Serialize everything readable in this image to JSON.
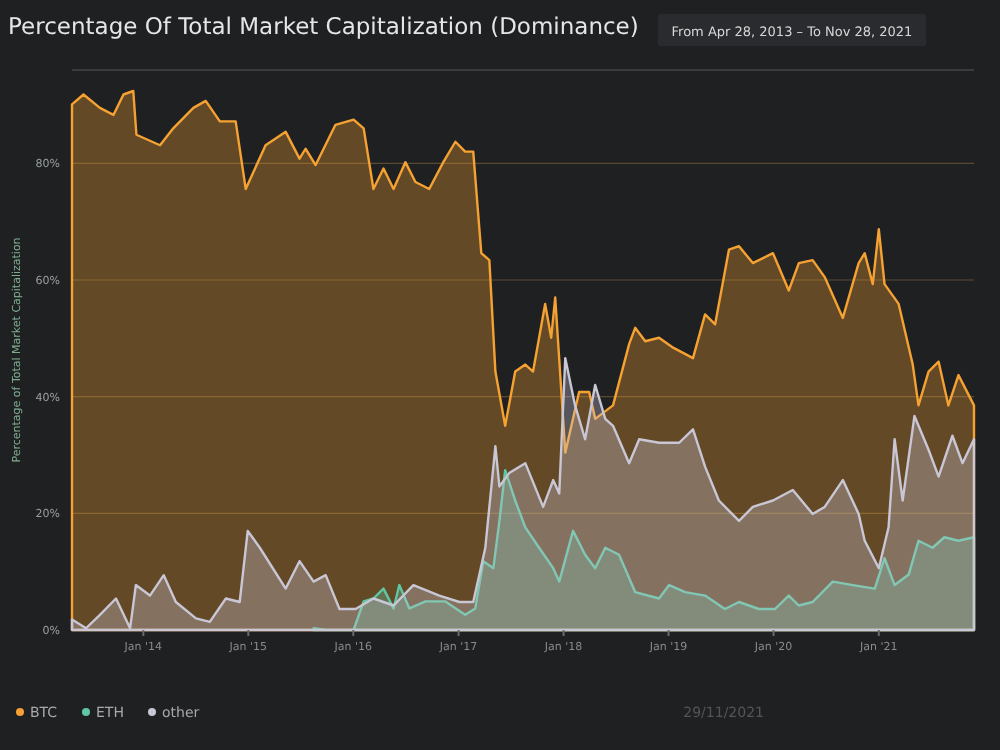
{
  "chart_data": {
    "type": "area",
    "title": "Percentage Of Total Market Capitalization (Dominance)",
    "subtitle": "From Apr 28, 2013 – To Nov 28, 2021",
    "ylabel": "Percentage of Total Market Capitalization",
    "annotations": [
      "29/11/2021"
    ],
    "xlim": [
      "2013-04-28",
      "2021-11-28"
    ],
    "xticks": [
      {
        "value": "2014-01-01",
        "label": "Jan '14"
      },
      {
        "value": "2015-01-01",
        "label": "Jan '15"
      },
      {
        "value": "2016-01-01",
        "label": "Jan '16"
      },
      {
        "value": "2017-01-01",
        "label": "Jan '17"
      },
      {
        "value": "2018-01-01",
        "label": "Jan '18"
      },
      {
        "value": "2019-01-01",
        "label": "Jan '19"
      },
      {
        "value": "2020-01-01",
        "label": "Jan '20"
      },
      {
        "value": "2021-01-01",
        "label": "Jan '21"
      }
    ],
    "ylim": [
      0,
      96
    ],
    "yticks": [
      {
        "value": 0,
        "label": "0%"
      },
      {
        "value": 20,
        "label": "20%"
      },
      {
        "value": 40,
        "label": "40%"
      },
      {
        "value": 60,
        "label": "60%"
      },
      {
        "value": 80,
        "label": "80%"
      }
    ],
    "grid": "y",
    "legend": "bottom left",
    "series": [
      {
        "name": "BTC",
        "color": "#f5a233",
        "x": [
          "2013-04-28",
          "2013-06-07",
          "2013-08-03",
          "2013-09-19",
          "2013-10-24",
          "2013-11-27",
          "2013-12-08",
          "2014-02-28",
          "2014-04-15",
          "2014-06-24",
          "2014-08-06",
          "2014-09-24",
          "2014-11-18",
          "2014-12-23",
          "2015-03-02",
          "2015-05-11",
          "2015-06-28",
          "2015-07-19",
          "2015-08-23",
          "2015-10-31",
          "2016-01-02",
          "2016-02-06",
          "2016-03-11",
          "2016-04-15",
          "2016-05-20",
          "2016-06-30",
          "2016-08-04",
          "2016-09-21",
          "2016-11-09",
          "2016-12-21",
          "2017-01-24",
          "2017-02-21",
          "2017-03-21",
          "2017-04-18",
          "2017-05-09",
          "2017-06-12",
          "2017-07-17",
          "2017-08-21",
          "2017-09-17",
          "2017-10-29",
          "2017-11-19",
          "2017-12-03",
          "2018-01-07",
          "2018-02-24",
          "2018-03-31",
          "2018-04-21",
          "2018-06-22",
          "2018-08-17",
          "2018-09-07",
          "2018-10-12",
          "2018-11-29",
          "2019-01-17",
          "2019-03-27",
          "2019-05-08",
          "2019-06-12",
          "2019-07-30",
          "2019-09-03",
          "2019-10-21",
          "2019-12-30",
          "2020-02-23",
          "2020-03-29",
          "2020-05-16",
          "2020-06-27",
          "2020-08-29",
          "2020-10-23",
          "2020-11-13",
          "2020-12-11",
          "2021-01-01",
          "2021-01-21",
          "2021-03-11",
          "2021-04-29",
          "2021-05-19",
          "2021-06-23",
          "2021-07-28",
          "2021-08-31",
          "2021-10-05",
          "2021-11-28"
        ],
        "values": [
          90.1,
          91.8,
          89.5,
          88.3,
          91.8,
          92.4,
          84.9,
          83.1,
          86,
          89.5,
          90.7,
          87.2,
          87.2,
          75.6,
          83.1,
          85.4,
          80.8,
          82.5,
          79.7,
          86.6,
          87.5,
          86,
          75.6,
          79.1,
          75.6,
          80.2,
          76.8,
          75.6,
          80.2,
          83.7,
          82,
          82,
          64.6,
          63.4,
          44.3,
          35,
          44.3,
          45.5,
          44.3,
          55.9,
          50.1,
          57,
          30.4,
          40.8,
          40.8,
          36.2,
          38.5,
          49,
          51.8,
          49.5,
          50.1,
          48.4,
          46.6,
          54.1,
          52.4,
          65.2,
          65.8,
          62.9,
          64.6,
          58.2,
          62.9,
          63.4,
          60.5,
          53.5,
          62.9,
          64.6,
          59.3,
          68.7,
          59.3,
          55.9,
          45.5,
          38.5,
          44.3,
          46,
          38.5,
          43.7,
          38.5
        ]
      },
      {
        "name": "ETH",
        "color": "#5fc7a4",
        "x": [
          "2015-08-16",
          "2015-09-27",
          "2016-01-02",
          "2016-02-06",
          "2016-03-11",
          "2016-04-15",
          "2016-05-20",
          "2016-06-09",
          "2016-07-14",
          "2016-09-08",
          "2016-11-16",
          "2017-01-24",
          "2017-02-28",
          "2017-03-28",
          "2017-05-02",
          "2017-05-23",
          "2017-06-12",
          "2017-07-17",
          "2017-08-21",
          "2017-10-08",
          "2017-11-26",
          "2017-12-17",
          "2018-02-03",
          "2018-03-17",
          "2018-04-21",
          "2018-05-26",
          "2018-07-13",
          "2018-09-07",
          "2018-11-29",
          "2019-01-03",
          "2019-02-28",
          "2019-05-08",
          "2019-07-16",
          "2019-09-03",
          "2019-11-11",
          "2020-01-06",
          "2020-02-23",
          "2020-03-29",
          "2020-05-16",
          "2020-07-25",
          "2020-10-03",
          "2020-12-18",
          "2021-01-21",
          "2021-02-25",
          "2021-04-15",
          "2021-05-19",
          "2021-07-07",
          "2021-08-17",
          "2021-10-05",
          "2021-11-28"
        ],
        "values": [
          0.3,
          0,
          0,
          4.9,
          5.4,
          7.1,
          3.7,
          7.7,
          3.7,
          4.9,
          4.9,
          2.6,
          3.7,
          11.8,
          10.6,
          18.7,
          27.4,
          22.2,
          17.6,
          14.1,
          10.6,
          8.3,
          17,
          12.9,
          10.6,
          14.1,
          12.9,
          6.5,
          5.4,
          7.7,
          6.5,
          5.9,
          3.6,
          4.8,
          3.6,
          3.6,
          5.9,
          4.2,
          4.8,
          8.3,
          7.7,
          7.1,
          12.3,
          7.7,
          9.5,
          15.3,
          14.1,
          15.9,
          15.3,
          15.9
        ]
      },
      {
        "name": "other",
        "color": "#c9c7d6",
        "x": [
          "2013-04-28",
          "2013-06-16",
          "2013-08-03",
          "2013-09-28",
          "2013-11-16",
          "2013-12-06",
          "2014-01-24",
          "2014-03-13",
          "2014-04-24",
          "2014-07-03",
          "2014-08-20",
          "2014-10-15",
          "2014-12-02",
          "2014-12-30",
          "2015-02-10",
          "2015-05-11",
          "2015-06-28",
          "2015-08-16",
          "2015-09-27",
          "2015-11-14",
          "2016-01-09",
          "2016-03-11",
          "2016-05-20",
          "2016-07-28",
          "2016-10-26",
          "2017-01-04",
          "2017-02-21",
          "2017-04-04",
          "2017-05-09",
          "2017-05-23",
          "2017-06-26",
          "2017-08-21",
          "2017-10-22",
          "2017-11-26",
          "2017-12-17",
          "2018-01-07",
          "2018-02-10",
          "2018-03-17",
          "2018-04-21",
          "2018-05-26",
          "2018-06-22",
          "2018-08-17",
          "2018-09-21",
          "2018-11-29",
          "2019-02-07",
          "2019-03-27",
          "2019-05-08",
          "2019-06-25",
          "2019-09-03",
          "2019-10-21",
          "2019-12-30",
          "2020-03-08",
          "2020-05-16",
          "2020-06-27",
          "2020-08-29",
          "2020-10-23",
          "2020-11-13",
          "2021-01-01",
          "2021-02-04",
          "2021-02-25",
          "2021-03-25",
          "2021-05-05",
          "2021-06-23",
          "2021-07-28",
          "2021-09-14",
          "2021-10-19",
          "2021-11-28"
        ],
        "values": [
          1.8,
          0.3,
          2.6,
          5.4,
          0.3,
          7.7,
          5.9,
          9.4,
          4.8,
          2,
          1.4,
          5.4,
          4.8,
          17,
          14.1,
          7.1,
          11.8,
          8.3,
          9.4,
          3.6,
          3.6,
          5.4,
          4.2,
          7.7,
          5.9,
          4.8,
          4.8,
          14.1,
          31.5,
          24.6,
          26.9,
          28.6,
          21.1,
          25.7,
          23.4,
          46.6,
          38.5,
          32.7,
          42,
          36.2,
          35,
          28.6,
          32.7,
          32.1,
          32.1,
          34.4,
          28,
          22.2,
          18.7,
          21.1,
          22.2,
          24,
          19.9,
          21.1,
          25.7,
          19.9,
          15.3,
          10.6,
          17.6,
          32.7,
          22.2,
          36.7,
          30.9,
          26.3,
          33.3,
          28.6,
          32.7
        ]
      }
    ]
  }
}
